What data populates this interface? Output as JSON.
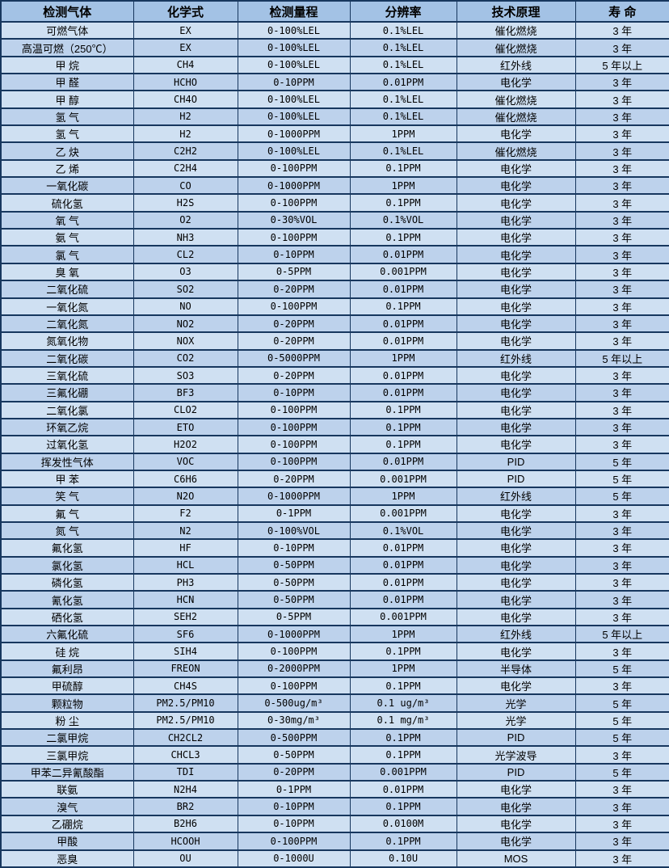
{
  "colors": {
    "header_bg": "#a3c2e5",
    "row_odd": "#cfe0f2",
    "row_even": "#bdd2ec",
    "border": "#17375e",
    "text": "#000000"
  },
  "table": {
    "columns": [
      "检测气体",
      "化学式",
      "检测量程",
      "分辨率",
      "技术原理",
      "寿 命"
    ],
    "rows": [
      {
        "gas": "可燃气体",
        "formula": "EX",
        "range": "0-100%LEL",
        "resolution": "0.1%LEL",
        "principle": "催化燃烧",
        "lifespan": "3 年"
      },
      {
        "gas": "高温可燃（250℃）",
        "formula": "EX",
        "range": "0-100%LEL",
        "resolution": "0.1%LEL",
        "principle": "催化燃烧",
        "lifespan": "3 年"
      },
      {
        "gas": "甲 烷",
        "formula": "CH4",
        "range": "0-100%LEL",
        "resolution": "0.1%LEL",
        "principle": "红外线",
        "lifespan": "5 年以上"
      },
      {
        "gas": "甲 醛",
        "formula": "HCHO",
        "range": "0-10PPM",
        "resolution": "0.01PPM",
        "principle": "电化学",
        "lifespan": "3 年"
      },
      {
        "gas": "甲 醇",
        "formula": "CH4O",
        "range": "0-100%LEL",
        "resolution": "0.1%LEL",
        "principle": "催化燃烧",
        "lifespan": "3 年"
      },
      {
        "gas": "氢 气",
        "formula": "H2",
        "range": "0-100%LEL",
        "resolution": "0.1%LEL",
        "principle": "催化燃烧",
        "lifespan": "3 年"
      },
      {
        "gas": "氢 气",
        "formula": "H2",
        "range": "0-1000PPM",
        "resolution": "1PPM",
        "principle": "电化学",
        "lifespan": "3 年"
      },
      {
        "gas": "乙 炔",
        "formula": "C2H2",
        "range": "0-100%LEL",
        "resolution": "0.1%LEL",
        "principle": "催化燃烧",
        "lifespan": "3 年"
      },
      {
        "gas": "乙 烯",
        "formula": "C2H4",
        "range": "0-100PPM",
        "resolution": "0.1PPM",
        "principle": "电化学",
        "lifespan": "3 年"
      },
      {
        "gas": "一氧化碳",
        "formula": "CO",
        "range": "0-1000PPM",
        "resolution": "1PPM",
        "principle": "电化学",
        "lifespan": "3 年"
      },
      {
        "gas": "硫化氢",
        "formula": "H2S",
        "range": "0-100PPM",
        "resolution": "0.1PPM",
        "principle": "电化学",
        "lifespan": "3 年"
      },
      {
        "gas": "氧 气",
        "formula": "O2",
        "range": "0-30%VOL",
        "resolution": "0.1%VOL",
        "principle": "电化学",
        "lifespan": "3 年"
      },
      {
        "gas": "氨 气",
        "formula": "NH3",
        "range": "0-100PPM",
        "resolution": "0.1PPM",
        "principle": "电化学",
        "lifespan": "3 年"
      },
      {
        "gas": "氯 气",
        "formula": "CL2",
        "range": "0-10PPM",
        "resolution": "0.01PPM",
        "principle": "电化学",
        "lifespan": "3 年"
      },
      {
        "gas": "臭 氧",
        "formula": "O3",
        "range": "0-5PPM",
        "resolution": "0.001PPM",
        "principle": "电化学",
        "lifespan": "3 年"
      },
      {
        "gas": "二氧化硫",
        "formula": "SO2",
        "range": "0-20PPM",
        "resolution": "0.01PPM",
        "principle": "电化学",
        "lifespan": "3 年"
      },
      {
        "gas": "一氧化氮",
        "formula": "NO",
        "range": "0-100PPM",
        "resolution": "0.1PPM",
        "principle": "电化学",
        "lifespan": "3 年"
      },
      {
        "gas": "二氧化氮",
        "formula": "NO2",
        "range": "0-20PPM",
        "resolution": "0.01PPM",
        "principle": "电化学",
        "lifespan": "3 年"
      },
      {
        "gas": "氮氧化物",
        "formula": "NOX",
        "range": "0-20PPM",
        "resolution": "0.01PPM",
        "principle": "电化学",
        "lifespan": "3 年"
      },
      {
        "gas": "二氧化碳",
        "formula": "CO2",
        "range": "0-5000PPM",
        "resolution": "1PPM",
        "principle": "红外线",
        "lifespan": "5 年以上"
      },
      {
        "gas": "三氧化硫",
        "formula": "SO3",
        "range": "0-20PPM",
        "resolution": "0.01PPM",
        "principle": "电化学",
        "lifespan": "3 年"
      },
      {
        "gas": "三氟化硼",
        "formula": "BF3",
        "range": "0-10PPM",
        "resolution": "0.01PPM",
        "principle": "电化学",
        "lifespan": "3 年"
      },
      {
        "gas": "二氧化氯",
        "formula": "CLO2",
        "range": "0-100PPM",
        "resolution": "0.1PPM",
        "principle": "电化学",
        "lifespan": "3 年"
      },
      {
        "gas": "环氧乙烷",
        "formula": "ETO",
        "range": "0-100PPM",
        "resolution": "0.1PPM",
        "principle": "电化学",
        "lifespan": "3 年"
      },
      {
        "gas": "过氧化氢",
        "formula": "H2O2",
        "range": "0-100PPM",
        "resolution": "0.1PPM",
        "principle": "电化学",
        "lifespan": "3 年"
      },
      {
        "gas": "挥发性气体",
        "formula": "VOC",
        "range": "0-100PPM",
        "resolution": "0.01PPM",
        "principle": "PID",
        "lifespan": "5 年"
      },
      {
        "gas": "甲 苯",
        "formula": "C6H6",
        "range": "0-20PPM",
        "resolution": "0.001PPM",
        "principle": "PID",
        "lifespan": "5 年"
      },
      {
        "gas": "笑 气",
        "formula": "N2O",
        "range": "0-1000PPM",
        "resolution": "1PPM",
        "principle": "红外线",
        "lifespan": "5 年"
      },
      {
        "gas": "氟 气",
        "formula": "F2",
        "range": "0-1PPM",
        "resolution": "0.001PPM",
        "principle": "电化学",
        "lifespan": "3 年"
      },
      {
        "gas": "氮 气",
        "formula": "N2",
        "range": "0-100%VOL",
        "resolution": "0.1%VOL",
        "principle": "电化学",
        "lifespan": "3 年"
      },
      {
        "gas": "氟化氢",
        "formula": "HF",
        "range": "0-10PPM",
        "resolution": "0.01PPM",
        "principle": "电化学",
        "lifespan": "3 年"
      },
      {
        "gas": "氯化氢",
        "formula": "HCL",
        "range": "0-50PPM",
        "resolution": "0.01PPM",
        "principle": "电化学",
        "lifespan": "3 年"
      },
      {
        "gas": "磷化氢",
        "formula": "PH3",
        "range": "0-50PPM",
        "resolution": "0.01PPM",
        "principle": "电化学",
        "lifespan": "3 年"
      },
      {
        "gas": "氰化氢",
        "formula": "HCN",
        "range": "0-50PPM",
        "resolution": "0.01PPM",
        "principle": "电化学",
        "lifespan": "3 年"
      },
      {
        "gas": "硒化氢",
        "formula": "SEH2",
        "range": "0-5PPM",
        "resolution": "0.001PPM",
        "principle": "电化学",
        "lifespan": "3 年"
      },
      {
        "gas": "六氟化硫",
        "formula": "SF6",
        "range": "0-1000PPM",
        "resolution": "1PPM",
        "principle": "红外线",
        "lifespan": "5 年以上"
      },
      {
        "gas": "硅 烷",
        "formula": "SIH4",
        "range": "0-100PPM",
        "resolution": "0.1PPM",
        "principle": "电化学",
        "lifespan": "3 年"
      },
      {
        "gas": "氟利昂",
        "formula": "FREON",
        "range": "0-2000PPM",
        "resolution": "1PPM",
        "principle": "半导体",
        "lifespan": "5 年"
      },
      {
        "gas": "甲硫醇",
        "formula": "CH4S",
        "range": "0-100PPM",
        "resolution": "0.1PPM",
        "principle": "电化学",
        "lifespan": "3 年"
      },
      {
        "gas": "颗粒物",
        "formula": "PM2.5/PM10",
        "range": "0-500ug/m³",
        "resolution": "0.1 ug/m³",
        "principle": "光学",
        "lifespan": "5 年"
      },
      {
        "gas": "粉 尘",
        "formula": "PM2.5/PM10",
        "range": "0-30mg/m³",
        "resolution": "0.1 mg/m³",
        "principle": "光学",
        "lifespan": "5 年"
      },
      {
        "gas": "二氯甲烷",
        "formula": "CH2CL2",
        "range": "0-500PPM",
        "resolution": "0.1PPM",
        "principle": "PID",
        "lifespan": "5 年"
      },
      {
        "gas": "三氯甲烷",
        "formula": "CHCL3",
        "range": "0-50PPM",
        "resolution": "0.1PPM",
        "principle": "光学波导",
        "lifespan": "3 年"
      },
      {
        "gas": "甲苯二异氰酸酯",
        "formula": "TDI",
        "range": "0-20PPM",
        "resolution": "0.001PPM",
        "principle": "PID",
        "lifespan": "5 年"
      },
      {
        "gas": "联氨",
        "formula": "N2H4",
        "range": "0-1PPM",
        "resolution": "0.01PPM",
        "principle": "电化学",
        "lifespan": "3 年"
      },
      {
        "gas": "溴气",
        "formula": "BR2",
        "range": "0-10PPM",
        "resolution": "0.1PPM",
        "principle": "电化学",
        "lifespan": "3 年"
      },
      {
        "gas": "乙硼烷",
        "formula": "B2H6",
        "range": "0-10PPM",
        "resolution": "0.0100M",
        "principle": "电化学",
        "lifespan": "3 年"
      },
      {
        "gas": "甲酸",
        "formula": "HCOOH",
        "range": "0-100PPM",
        "resolution": "0.1PPM",
        "principle": "电化学",
        "lifespan": "3 年"
      },
      {
        "gas": "恶臭",
        "formula": "OU",
        "range": "0-1000U",
        "resolution": "0.10U",
        "principle": "MOS",
        "lifespan": "3 年"
      }
    ]
  }
}
